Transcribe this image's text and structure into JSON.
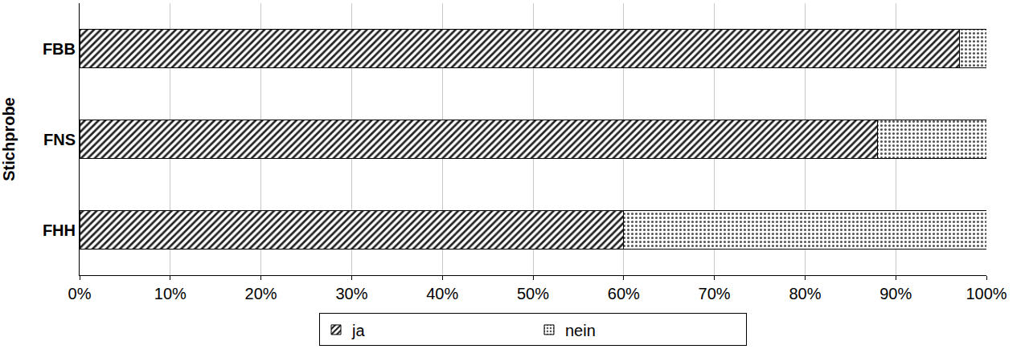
{
  "chart_data": {
    "type": "bar",
    "orientation": "horizontal",
    "stacked": true,
    "ylabel": "Stichprobe",
    "categories": [
      "FHH",
      "FNS",
      "FBB"
    ],
    "series": [
      {
        "name": "ja",
        "color": "#222222",
        "marker": "hatch",
        "values": [
          60,
          88,
          97
        ]
      },
      {
        "name": "nein",
        "color": "#555555",
        "marker": "dots",
        "values": [
          40,
          12,
          3
        ]
      }
    ],
    "xlim": [
      0,
      100
    ],
    "xticks": [
      {
        "value": 0,
        "label": "0%"
      },
      {
        "value": 10,
        "label": "10%"
      },
      {
        "value": 20,
        "label": "20%"
      },
      {
        "value": 30,
        "label": "30%"
      },
      {
        "value": 40,
        "label": "40%"
      },
      {
        "value": 50,
        "label": "50%"
      },
      {
        "value": 60,
        "label": "60%"
      },
      {
        "value": 70,
        "label": "70%"
      },
      {
        "value": 80,
        "label": "80%"
      },
      {
        "value": 90,
        "label": "90%"
      },
      {
        "value": 100,
        "label": "100%"
      }
    ],
    "grid": true,
    "legend": "bottom"
  }
}
